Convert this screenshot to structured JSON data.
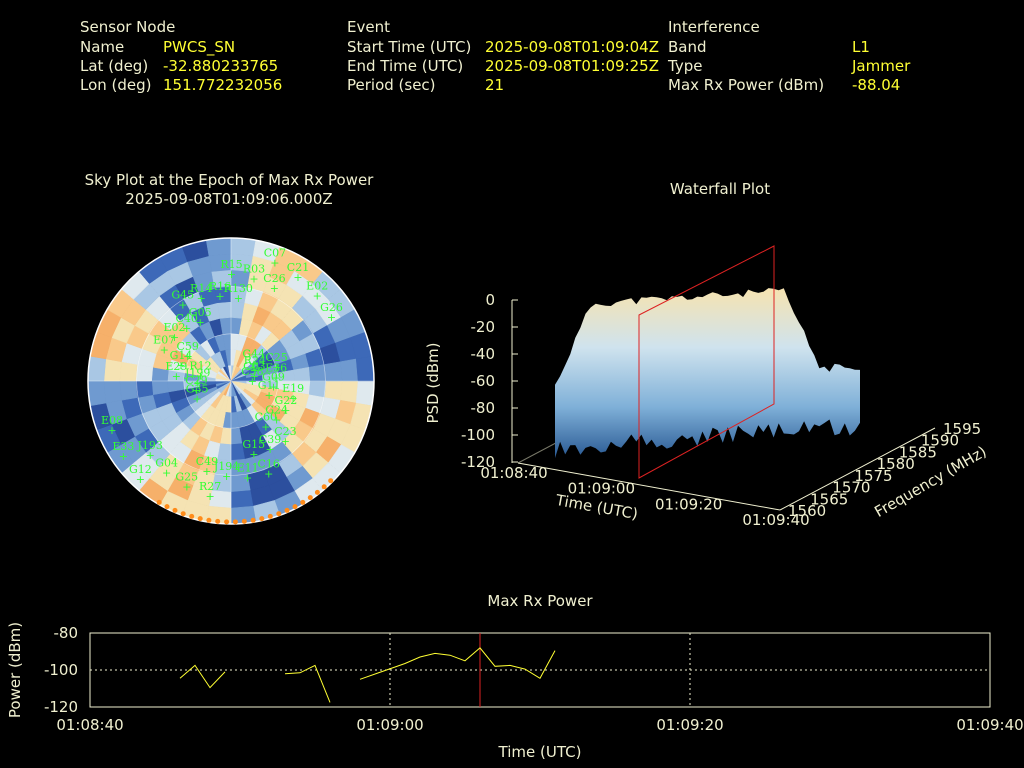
{
  "header": {
    "sensor": {
      "title": "Sensor Node",
      "rows": [
        {
          "label": "Name",
          "value": "PWCS_SN"
        },
        {
          "label": "Lat (deg)",
          "value": "-32.880233765"
        },
        {
          "label": "Lon (deg)",
          "value": "151.772232056"
        }
      ]
    },
    "event": {
      "title": "Event",
      "rows": [
        {
          "label": "Start Time (UTC)",
          "value": "2025-09-08T01:09:04Z"
        },
        {
          "label": "End Time (UTC)",
          "value": "2025-09-08T01:09:25Z"
        },
        {
          "label": "Period (sec)",
          "value": "21"
        }
      ]
    },
    "interference": {
      "title": "Interference",
      "rows": [
        {
          "label": "Band",
          "value": "L1"
        },
        {
          "label": "Type",
          "value": "Jammer"
        },
        {
          "label": "Max Rx Power (dBm)",
          "value": "-88.04"
        }
      ]
    }
  },
  "sky_plot": {
    "title_line1": "Sky Plot at the Epoch of Max Rx Power",
    "title_line2": "2025-09-08T01:09:06.000Z",
    "satellites": [
      "C58",
      "J193",
      "R130",
      "C60",
      "R12",
      "G26",
      "C49",
      "G05",
      "G11",
      "E08",
      "C26",
      "G15",
      "C59",
      "C03",
      "G04",
      "R16",
      "G24",
      "J199",
      "E02",
      "J194",
      "C40",
      "G09",
      "E33",
      "R03",
      "C39",
      "G14",
      "R24",
      "G25",
      "R14",
      "G22",
      "C29",
      "C21",
      "E11",
      "E02",
      "E36",
      "G12",
      "R15",
      "C23",
      "E29",
      "G44",
      "R27",
      "G45",
      "E19",
      "G35",
      "C07",
      "C16",
      "E07",
      "C25"
    ],
    "marker_color": "#33ff33"
  },
  "waterfall": {
    "title": "Waterfall Plot",
    "z_axis_label": "PSD (dBm)",
    "z_ticks": [
      "0",
      "-20",
      "-40",
      "-60",
      "-80",
      "-100",
      "-120"
    ],
    "time_axis_label": "Time (UTC)",
    "time_ticks": [
      "01:08:40",
      "01:09:00",
      "01:09:20",
      "01:09:40"
    ],
    "freq_axis_label": "Frequency (MHz)",
    "freq_ticks": [
      "1560",
      "1565",
      "1570",
      "1575",
      "1580",
      "1585",
      "1590",
      "1595"
    ]
  },
  "chart_data": {
    "type": "line",
    "title": "Max Rx Power",
    "xlabel": "Time (UTC)",
    "ylabel": "Power (dBm)",
    "x_ticks": [
      "01:08:40",
      "01:09:00",
      "01:09:20",
      "01:09:40"
    ],
    "y_ticks": [
      "-80",
      "-100",
      "-120"
    ],
    "ylim": [
      -120,
      -80
    ],
    "xlim": [
      "01:08:40",
      "01:09:40"
    ],
    "grid": true,
    "marker_time": "01:09:06",
    "line_color": "#ffff33",
    "marker_color": "#dd2222",
    "segments": [
      [
        [
          "01:08:46",
          -104.5
        ],
        [
          "01:08:47",
          -97.5
        ],
        [
          "01:08:48",
          -109.5
        ],
        [
          "01:08:49",
          -101
        ]
      ],
      [
        [
          "01:08:53",
          -102
        ],
        [
          "01:08:54",
          -101.5
        ],
        [
          "01:08:55",
          -97.5
        ],
        [
          "01:08:56",
          -117.5
        ]
      ],
      [
        [
          "01:08:58",
          -105
        ],
        [
          "01:09:01",
          -96.5
        ],
        [
          "01:09:02",
          -93
        ],
        [
          "01:09:03",
          -91
        ],
        [
          "01:09:04",
          -92
        ],
        [
          "01:09:05",
          -95
        ],
        [
          "01:09:06",
          -88.04
        ],
        [
          "01:09:07",
          -98
        ],
        [
          "01:09:08",
          -97.5
        ],
        [
          "01:09:09",
          -99.5
        ],
        [
          "01:09:10",
          -104.5
        ],
        [
          "01:09:11",
          -89.5
        ]
      ]
    ]
  }
}
